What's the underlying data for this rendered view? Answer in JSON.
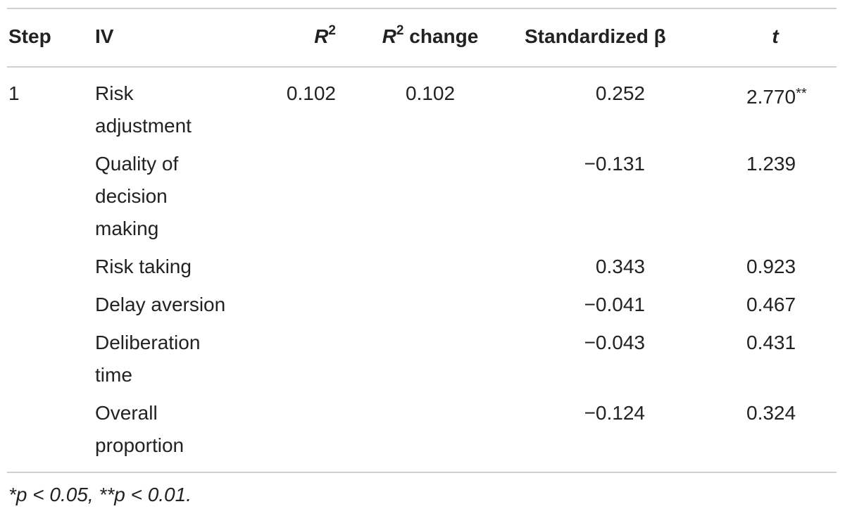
{
  "table": {
    "header": {
      "step": "Step",
      "iv": "IV",
      "r2": {
        "base": "R",
        "sup": "2"
      },
      "r2_change": {
        "base": "R",
        "sup": "2",
        "rest": " change"
      },
      "beta": "Standardized β",
      "t": "t"
    },
    "rows": [
      {
        "step": "1",
        "iv": [
          "Risk",
          "adjustment"
        ],
        "r2": "0.102",
        "r2_change": "0.102",
        "beta": "0.252",
        "t": "2.770",
        "t_sig": "**"
      },
      {
        "iv": [
          "Quality of",
          "decision",
          "making"
        ],
        "beta": "−0.131",
        "t": "1.239"
      },
      {
        "iv": [
          "Risk taking"
        ],
        "beta": "0.343",
        "t": "0.923"
      },
      {
        "iv": [
          "Delay aversion"
        ],
        "beta": "−0.041",
        "t": "0.467"
      },
      {
        "iv": [
          "Deliberation",
          "time"
        ],
        "beta": "−0.043",
        "t": "0.431"
      },
      {
        "iv": [
          "Overall",
          "proportion"
        ],
        "beta": "−0.124",
        "t": "0.324"
      }
    ],
    "footnote": "*p < 0.05, **p < 0.01."
  }
}
